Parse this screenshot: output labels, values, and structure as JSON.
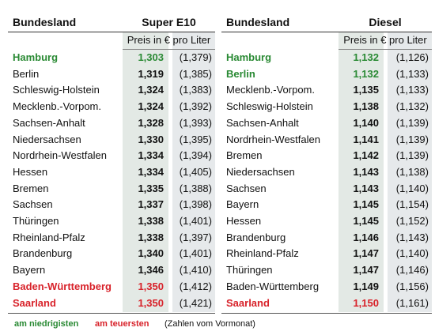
{
  "tables": [
    {
      "header": "Bundesland",
      "title": "Super E10",
      "subheader": "Preis in € pro Liter",
      "rows": [
        {
          "name": "Hamburg",
          "price": "1,303",
          "prev": "(1,379)",
          "color": "#2a8a34"
        },
        {
          "name": "Berlin",
          "price": "1,319",
          "prev": "(1,385)"
        },
        {
          "name": "Schleswig-Holstein",
          "price": "1,324",
          "prev": "(1,383)"
        },
        {
          "name": "Mecklenb.-Vorpom.",
          "price": "1,324",
          "prev": "(1,392)"
        },
        {
          "name": "Sachsen-Anhalt",
          "price": "1,328",
          "prev": "(1,393)"
        },
        {
          "name": "Niedersachsen",
          "price": "1,330",
          "prev": "(1,395)"
        },
        {
          "name": "Nordrhein-Westfalen",
          "price": "1,334",
          "prev": "(1,394)"
        },
        {
          "name": "Hessen",
          "price": "1,334",
          "prev": "(1,405)"
        },
        {
          "name": "Bremen",
          "price": "1,335",
          "prev": "(1,388)"
        },
        {
          "name": "Sachsen",
          "price": "1,337",
          "prev": "(1,398)"
        },
        {
          "name": "Thüringen",
          "price": "1,338",
          "prev": "(1,401)"
        },
        {
          "name": "Rheinland-Pfalz",
          "price": "1,338",
          "prev": "(1,397)"
        },
        {
          "name": "Brandenburg",
          "price": "1,340",
          "prev": "(1,401)"
        },
        {
          "name": "Bayern",
          "price": "1,346",
          "prev": "(1,410)"
        },
        {
          "name": "Baden-Württemberg",
          "price": "1,350",
          "prev": "(1,412)",
          "color": "#d8222a"
        },
        {
          "name": "Saarland",
          "price": "1,350",
          "prev": "(1,421)",
          "color": "#d8222a"
        }
      ]
    },
    {
      "header": "Bundesland",
      "title": "Diesel",
      "subheader": "Preis in € pro Liter",
      "rows": [
        {
          "name": "Hamburg",
          "price": "1,132",
          "prev": "(1,126)",
          "color": "#2a8a34"
        },
        {
          "name": "Berlin",
          "price": "1,132",
          "prev": "(1,133)",
          "color": "#2a8a34"
        },
        {
          "name": "Mecklenb.-Vorpom.",
          "price": "1,135",
          "prev": "(1,133)"
        },
        {
          "name": "Schleswig-Holstein",
          "price": "1,138",
          "prev": "(1,132)"
        },
        {
          "name": "Sachsen-Anhalt",
          "price": "1,140",
          "prev": "(1,139)"
        },
        {
          "name": "Nordrhein-Westfalen",
          "price": "1,141",
          "prev": "(1,139)"
        },
        {
          "name": "Bremen",
          "price": "1,142",
          "prev": "(1,139)"
        },
        {
          "name": "Niedersachsen",
          "price": "1,143",
          "prev": "(1,138)"
        },
        {
          "name": "Sachsen",
          "price": "1,143",
          "prev": "(1,140)"
        },
        {
          "name": "Bayern",
          "price": "1,145",
          "prev": "(1,154)"
        },
        {
          "name": "Hessen",
          "price": "1,145",
          "prev": "(1,152)"
        },
        {
          "name": "Brandenburg",
          "price": "1,146",
          "prev": "(1,143)"
        },
        {
          "name": "Rheinland-Pfalz",
          "price": "1,147",
          "prev": "(1,140)"
        },
        {
          "name": "Thüringen",
          "price": "1,147",
          "prev": "(1,146)"
        },
        {
          "name": "Baden-Württemberg",
          "price": "1,149",
          "prev": "(1,156)"
        },
        {
          "name": "Saarland",
          "price": "1,150",
          "prev": "(1,161)",
          "color": "#d8222a"
        }
      ]
    }
  ],
  "legend": {
    "low": "am niedrigisten",
    "low_color": "#2a8a34",
    "high": "am teuersten",
    "high_color": "#d8222a",
    "note": "(Zahlen vom Vormonat)"
  }
}
